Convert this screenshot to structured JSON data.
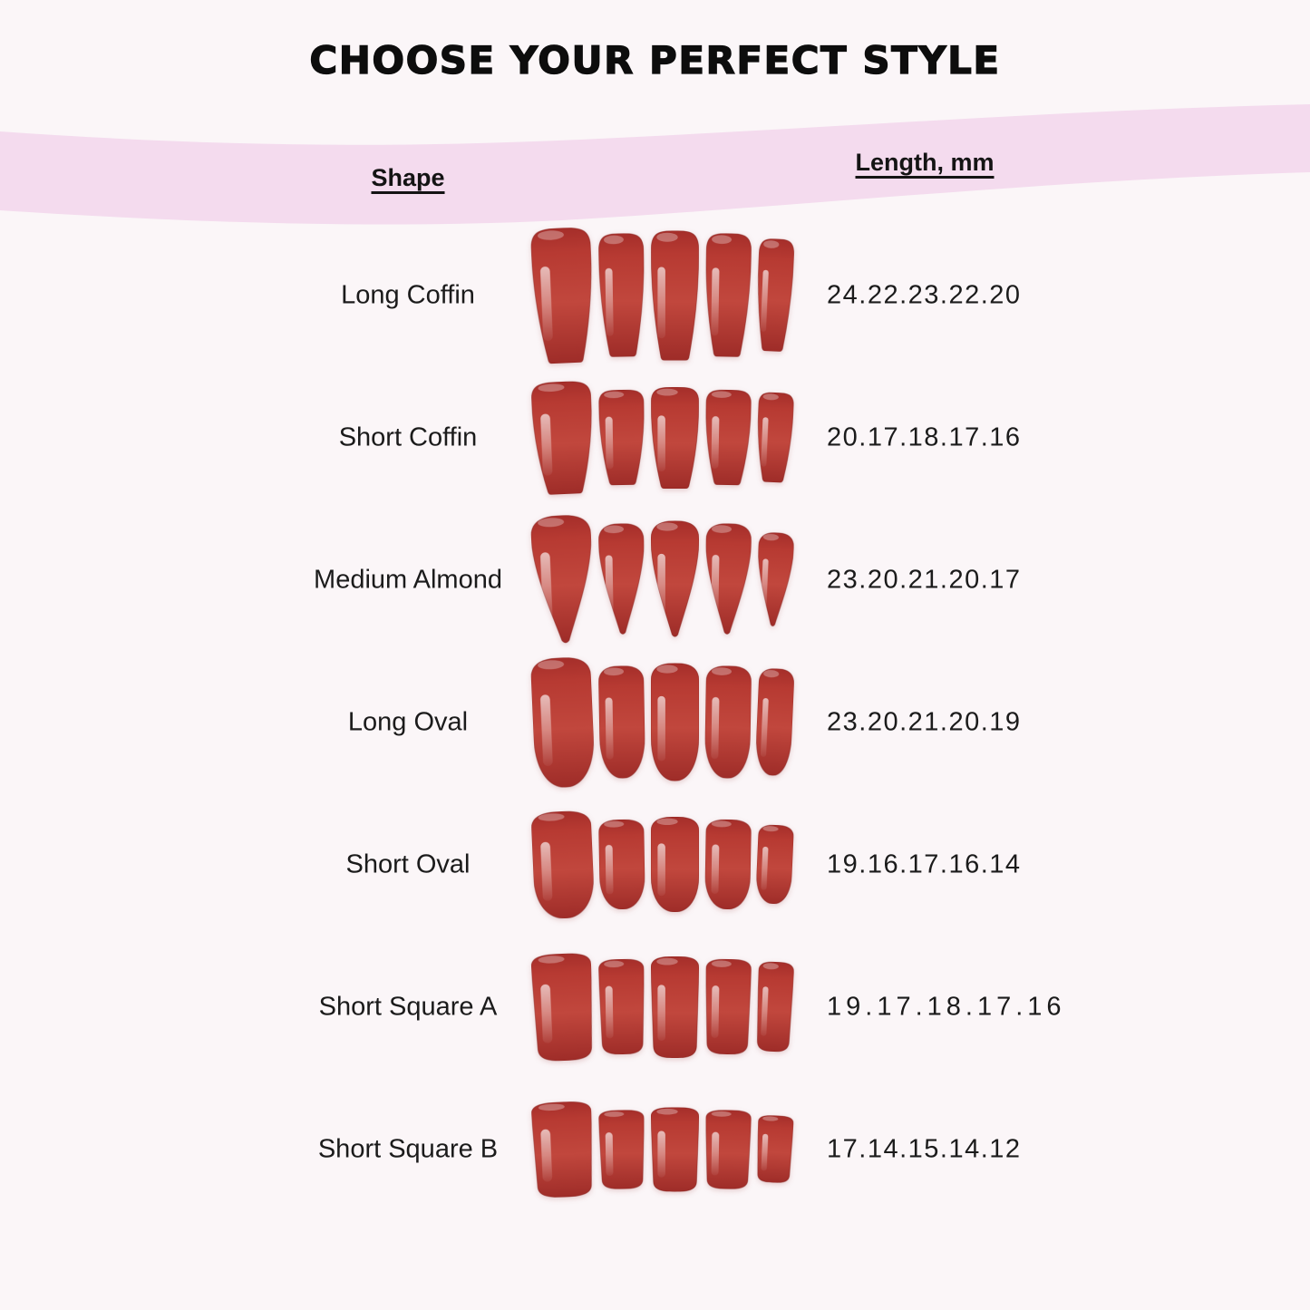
{
  "title": "CHOOSE YOUR PERFECT STYLE",
  "header": {
    "shape": "Shape",
    "length": "Length, mm"
  },
  "rows": [
    {
      "shape_label": "Long Coffin",
      "lengths_label": "24.22.23.22.20",
      "nail_type": "coffin",
      "lengths_mm": [
        24,
        22,
        23,
        22,
        20
      ],
      "tracked": false
    },
    {
      "shape_label": "Short Coffin",
      "lengths_label": "20.17.18.17.16",
      "nail_type": "coffin",
      "lengths_mm": [
        20,
        17,
        18,
        17,
        16
      ],
      "tracked": false
    },
    {
      "shape_label": "Medium Almond",
      "lengths_label": "23.20.21.20.17",
      "nail_type": "almond",
      "lengths_mm": [
        23,
        20,
        21,
        20,
        17
      ],
      "tracked": false
    },
    {
      "shape_label": "Long Oval",
      "lengths_label": "23.20.21.20.19",
      "nail_type": "oval",
      "lengths_mm": [
        23,
        20,
        21,
        20,
        19
      ],
      "tracked": false
    },
    {
      "shape_label": "Short Oval",
      "lengths_label": "19.16.17.16.14",
      "nail_type": "oval",
      "lengths_mm": [
        19,
        16,
        17,
        16,
        14
      ],
      "tracked": false
    },
    {
      "shape_label": "Short Square A",
      "lengths_label": "19.17.18.17.16",
      "nail_type": "square",
      "lengths_mm": [
        19,
        17,
        18,
        17,
        16
      ],
      "tracked": true
    },
    {
      "shape_label": "Short Square B",
      "lengths_label": "17.14.15.14.12",
      "nail_type": "square",
      "lengths_mm": [
        17,
        14,
        15,
        14,
        12
      ],
      "tracked": false
    }
  ],
  "colors": {
    "background": "#fbf6f8",
    "band": "#f4dbee",
    "nail_red": "#b23a32",
    "text": "#1b1b1b"
  },
  "chart_data": {
    "type": "table",
    "title": "CHOOSE YOUR PERFECT STYLE",
    "columns": [
      "Shape",
      "Length, mm"
    ],
    "rows": [
      [
        "Long Coffin",
        "24.22.23.22.20"
      ],
      [
        "Short Coffin",
        "20.17.18.17.16"
      ],
      [
        "Medium Almond",
        "23.20.21.20.17"
      ],
      [
        "Long Oval",
        "23.20.21.20.19"
      ],
      [
        "Short Oval",
        "19.16.17.16.14"
      ],
      [
        "Short Square A",
        "19.17.18.17.16"
      ],
      [
        "Short Square B",
        "17.14.15.14.12"
      ]
    ]
  }
}
